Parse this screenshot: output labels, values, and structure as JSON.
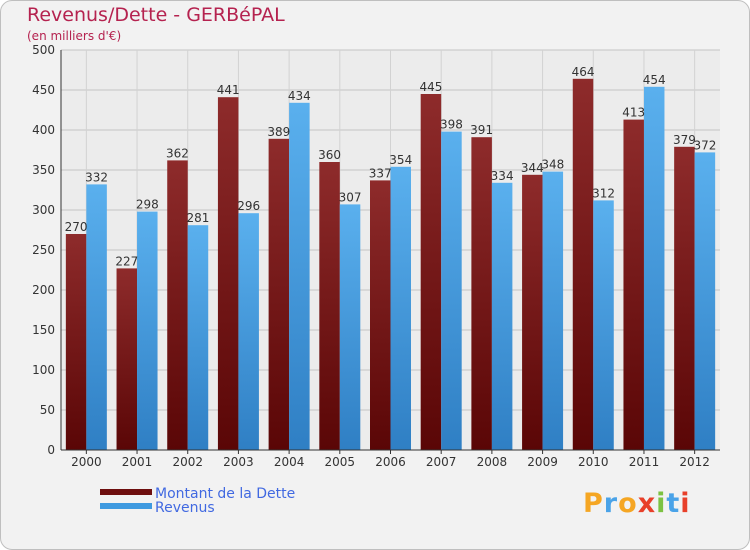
{
  "header": {
    "title": "Revenus/Dette - GERBéPAL",
    "subtitle": "(en milliers d'€)"
  },
  "chart_data": {
    "type": "bar",
    "title": "Revenus/Dette - GERBéPAL",
    "subtitle": "(en milliers d'€)",
    "xlabel": "",
    "ylabel": "",
    "ylim": [
      0,
      500
    ],
    "yticks": [
      0,
      50,
      100,
      150,
      200,
      250,
      300,
      350,
      400,
      450,
      500
    ],
    "grid": true,
    "legend_position": "bottom-left",
    "categories": [
      "2000",
      "2001",
      "2002",
      "2003",
      "2004",
      "2005",
      "2006",
      "2007",
      "2008",
      "2009",
      "2010",
      "2011",
      "2012"
    ],
    "series": [
      {
        "name": "Montant de la Dette",
        "color": "#8b1a1a",
        "values": [
          270,
          227,
          362,
          441,
          389,
          360,
          337,
          445,
          391,
          344,
          464,
          413,
          379
        ]
      },
      {
        "name": "Revenus",
        "color": "#4aa3e8",
        "values": [
          332,
          298,
          281,
          296,
          434,
          307,
          354,
          398,
          334,
          348,
          312,
          454,
          372
        ]
      }
    ]
  },
  "legend": {
    "items": [
      {
        "label": "Montant de la Dette",
        "color": "#6e0f0f"
      },
      {
        "label": "Revenus",
        "color": "#3f9ae0"
      }
    ]
  },
  "logo": {
    "letters": [
      "P",
      "r",
      "o",
      "x",
      "i",
      "t",
      "i"
    ],
    "colors": [
      "#f5a623",
      "#4aa3e8",
      "#f5a623",
      "#e8402a",
      "#7cc242",
      "#4aa3e8",
      "#e8402a"
    ]
  }
}
